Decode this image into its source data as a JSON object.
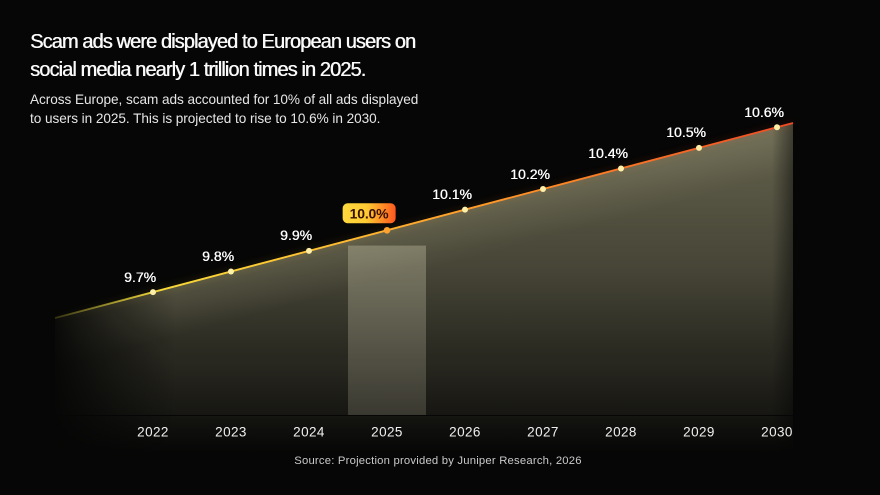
{
  "header": {
    "title_line1": "Scam ads were displayed to European users on",
    "title_line2": "social media nearly 1 trillion times in 2025.",
    "subtitle_line1": "Across Europe, scam ads accounted for 10% of all ads displayed",
    "subtitle_line2": "to users in 2025. This is projected to rise to 10.6% in 2030."
  },
  "chart_data": {
    "type": "area",
    "categories": [
      "2022",
      "2023",
      "2024",
      "2025",
      "2026",
      "2027",
      "2028",
      "2029",
      "2030"
    ],
    "values": [
      9.7,
      9.8,
      9.9,
      10.0,
      10.1,
      10.2,
      10.4,
      10.5,
      10.6
    ],
    "point_labels": [
      "9.7%",
      "9.8%",
      "9.9%",
      "10.0%",
      "10.1%",
      "10.2%",
      "10.4%",
      "10.5%",
      "10.6%"
    ],
    "highlight": {
      "category": "2025",
      "label": "10.0%"
    },
    "xlabel": "",
    "ylabel": "",
    "legend": false,
    "colors": {
      "dot": "#fff0a8",
      "highlight_dot": "#ffa22f",
      "line_start": "#f2ea3e",
      "line_mid": "#ffc233",
      "line_mid2": "#ff8d26",
      "line_end": "#ee4a26",
      "area_base": "#dcd8a8",
      "badge_from": "#ffd83e",
      "badge_to": "#ff5520"
    }
  },
  "footer": {
    "source": "Source: Projection provided by Juniper Research, 2026"
  }
}
